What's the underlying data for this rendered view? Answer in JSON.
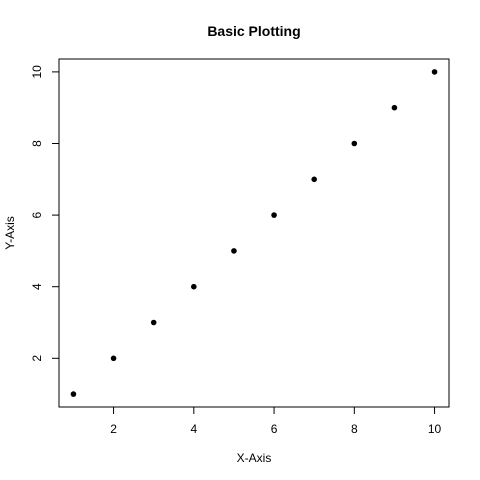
{
  "chart_data": {
    "type": "scatter",
    "title": "Basic Plotting",
    "xlabel": "X-Axis",
    "ylabel": "Y-Axis",
    "x": [
      1,
      2,
      3,
      4,
      5,
      6,
      7,
      8,
      9,
      10
    ],
    "y": [
      1,
      2,
      3,
      4,
      5,
      6,
      7,
      8,
      9,
      10
    ],
    "xlim": [
      0.64,
      10.36
    ],
    "ylim": [
      0.64,
      10.36
    ],
    "xticks": [
      2,
      4,
      6,
      8,
      10
    ],
    "yticks": [
      2,
      4,
      6,
      8,
      10
    ],
    "grid": false,
    "legend": "none",
    "point_color": "#000000"
  }
}
